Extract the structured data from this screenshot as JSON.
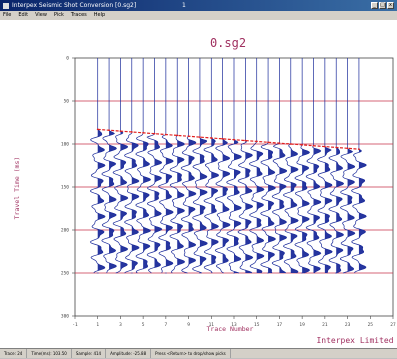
{
  "window": {
    "title": "Interpex Seismic Shot Conversion [0.sg2]",
    "counter": "1",
    "min_label": "_",
    "max_label": "□",
    "close_label": "x"
  },
  "menu": [
    "File",
    "Edit",
    "View",
    "Pick",
    "Traces",
    "Help"
  ],
  "plot": {
    "title": "0.sg2",
    "xlabel": "Trace Number",
    "ylabel": "Travel Time (ms)",
    "branding": "Interpex Limited"
  },
  "chart_data": {
    "type": "line",
    "title": "0.sg2",
    "xlabel": "Trace Number",
    "ylabel": "Travel Time (ms)",
    "x_ticks": [
      "-1",
      "1",
      "3",
      "5",
      "7",
      "9",
      "11",
      "13",
      "15",
      "17",
      "19",
      "21",
      "23",
      "25",
      "27"
    ],
    "y_ticks": [
      "0",
      "50",
      "100",
      "150",
      "200",
      "250",
      "300"
    ],
    "xlim": [
      -1,
      27
    ],
    "ylim": [
      0,
      300
    ],
    "traces": [
      1,
      2,
      3,
      4,
      5,
      6,
      7,
      8,
      9,
      10,
      11,
      12,
      13,
      14,
      15,
      16,
      17,
      18,
      19,
      20,
      21,
      22,
      23,
      24
    ],
    "first_break_picks": {
      "x": [
        1,
        2,
        3,
        4,
        5,
        6,
        7,
        8,
        9,
        10,
        11,
        12,
        13,
        14,
        15,
        16,
        17,
        18,
        19,
        20,
        21,
        22,
        23,
        24
      ],
      "y": [
        83,
        84,
        85,
        86,
        87,
        88,
        89,
        90,
        91,
        92,
        93,
        94,
        95,
        96,
        97,
        98,
        99,
        100,
        101,
        102,
        103,
        104,
        105,
        106
      ]
    },
    "first_break_color": "#e02020",
    "wiggle_color": "#1a2a9a",
    "grid_color": "#c8304a"
  },
  "status": [
    "Trace: 24",
    "Time(ms): 103.50",
    "Sample: 414",
    "Amplitude: -25.88",
    "Press <Return> to drop/show picks"
  ]
}
